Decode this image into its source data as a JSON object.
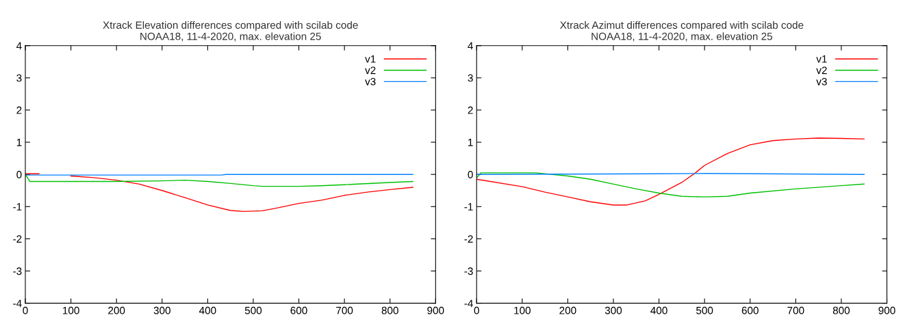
{
  "chart_data": [
    {
      "type": "line",
      "title": "Xtrack Elevation differences compared with scilab code\nNOAA18, 11-4-2020, max. elevation 25",
      "xlim": [
        0,
        900
      ],
      "xticks": [
        0,
        100,
        200,
        300,
        400,
        500,
        600,
        700,
        800,
        900
      ],
      "ylim": [
        -4,
        4
      ],
      "yticks": [
        -4,
        -3,
        -2,
        -1,
        0,
        1,
        2,
        3,
        4
      ],
      "grid": false,
      "legend": "top right",
      "marker": "none",
      "line_style": "solid",
      "series": [
        {
          "name": "v1",
          "color": "#ff0000",
          "x": [
            0,
            30,
            50,
            100,
            150,
            200,
            250,
            300,
            350,
            400,
            450,
            480,
            520,
            550,
            600,
            650,
            700,
            750,
            800,
            850
          ],
          "values": [
            0.02,
            0.02,
            null,
            -0.05,
            -0.1,
            -0.18,
            -0.3,
            -0.5,
            -0.72,
            -0.95,
            -1.12,
            -1.15,
            -1.13,
            -1.05,
            -0.9,
            -0.8,
            -0.65,
            -0.55,
            -0.47,
            -0.4
          ]
        },
        {
          "name": "v2",
          "color": "#00c000",
          "x": [
            0,
            10,
            200,
            300,
            350,
            400,
            450,
            500,
            520,
            600,
            650,
            700,
            800,
            850
          ],
          "values": [
            0,
            -0.22,
            -0.22,
            -0.2,
            -0.18,
            -0.22,
            -0.28,
            -0.35,
            -0.37,
            -0.37,
            -0.35,
            -0.32,
            -0.25,
            -0.22
          ]
        },
        {
          "name": "v3",
          "color": "#0080ff",
          "x": [
            0,
            430,
            440,
            850
          ],
          "values": [
            -0.02,
            -0.02,
            0,
            0
          ]
        }
      ]
    },
    {
      "type": "line",
      "title": "Xtrack Azimut differences compared with scilab code\nNOAA18, 11-4-2020, max. elevation 25",
      "xlim": [
        0,
        900
      ],
      "xticks": [
        0,
        100,
        200,
        300,
        400,
        500,
        600,
        700,
        800,
        900
      ],
      "ylim": [
        -4,
        4
      ],
      "yticks": [
        -4,
        -3,
        -2,
        -1,
        0,
        1,
        2,
        3,
        4
      ],
      "grid": false,
      "legend": "top right",
      "marker": "none",
      "line_style": "solid",
      "series": [
        {
          "name": "v1",
          "color": "#ff0000",
          "x": [
            0,
            100,
            150,
            200,
            250,
            300,
            330,
            370,
            400,
            450,
            480,
            500,
            550,
            600,
            650,
            700,
            750,
            800,
            850
          ],
          "values": [
            -0.15,
            -0.38,
            -0.55,
            -0.7,
            -0.85,
            -0.95,
            -0.95,
            -0.82,
            -0.62,
            -0.25,
            0.05,
            0.28,
            0.65,
            0.92,
            1.05,
            1.1,
            1.13,
            1.12,
            1.1
          ]
        },
        {
          "name": "v2",
          "color": "#00c000",
          "x": [
            0,
            10,
            130,
            200,
            250,
            300,
            350,
            400,
            450,
            500,
            550,
            600,
            700,
            800,
            850
          ],
          "values": [
            -0.1,
            0.05,
            0.05,
            -0.05,
            -0.15,
            -0.3,
            -0.45,
            -0.58,
            -0.68,
            -0.7,
            -0.68,
            -0.58,
            -0.45,
            -0.35,
            -0.3
          ]
        },
        {
          "name": "v3",
          "color": "#0080ff",
          "x": [
            0,
            400,
            500,
            850
          ],
          "values": [
            0,
            0.02,
            0.03,
            0
          ]
        }
      ]
    }
  ]
}
